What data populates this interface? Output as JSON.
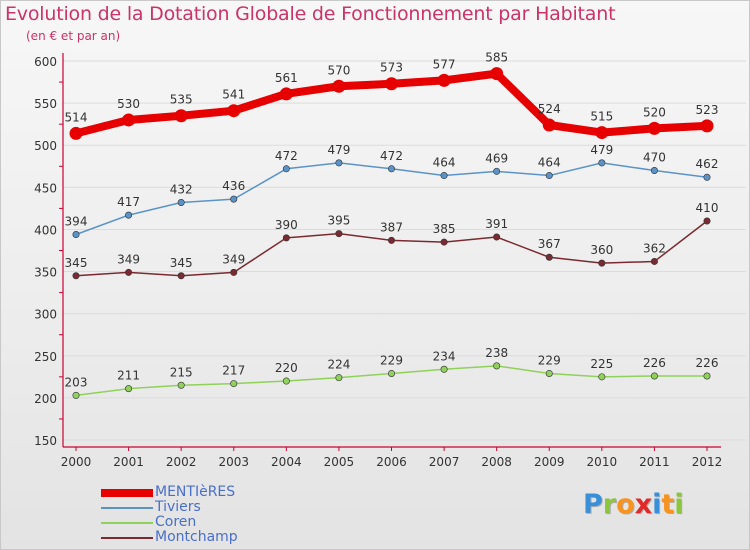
{
  "title": "Evolution de la Dotation Globale de Fonctionnement par Habitant",
  "subtitle": "(en € et par an)",
  "logo": {
    "letters": [
      {
        "ch": "P",
        "color": "#3a8fd9"
      },
      {
        "ch": "r",
        "color": "#8cc63f"
      },
      {
        "ch": "o",
        "color": "#f7931e"
      },
      {
        "ch": "x",
        "color": "#e02a2a"
      },
      {
        "ch": "i",
        "color": "#3a8fd9"
      },
      {
        "ch": "t",
        "color": "#f7931e"
      },
      {
        "ch": "i",
        "color": "#8cc63f"
      }
    ]
  },
  "chart_data": {
    "type": "line",
    "x": [
      "2000",
      "2001",
      "2002",
      "2003",
      "2004",
      "2005",
      "2006",
      "2007",
      "2008",
      "2009",
      "2010",
      "2011",
      "2012"
    ],
    "ylim": [
      150,
      600
    ],
    "yticks": [
      "150",
      "200",
      "250",
      "300",
      "350",
      "400",
      "450",
      "500",
      "550",
      "600"
    ],
    "grid": true,
    "legend_position": "bottom-left",
    "series": [
      {
        "name": "MENTIèRES",
        "color": "#e60000",
        "values": [
          514,
          530,
          535,
          541,
          561,
          570,
          573,
          577,
          585,
          524,
          515,
          520,
          523
        ]
      },
      {
        "name": "Tiviers",
        "color": "#5b93c8",
        "values": [
          394,
          417,
          432,
          436,
          472,
          479,
          472,
          464,
          469,
          464,
          479,
          470,
          462
        ]
      },
      {
        "name": "Coren",
        "color": "#8fd15a",
        "values": [
          203,
          211,
          215,
          217,
          220,
          224,
          229,
          234,
          238,
          229,
          225,
          226,
          226
        ]
      },
      {
        "name": "Montchamp",
        "color": "#7a2a30",
        "values": [
          345,
          349,
          345,
          349,
          390,
          395,
          387,
          385,
          391,
          367,
          360,
          362,
          410
        ]
      }
    ]
  }
}
